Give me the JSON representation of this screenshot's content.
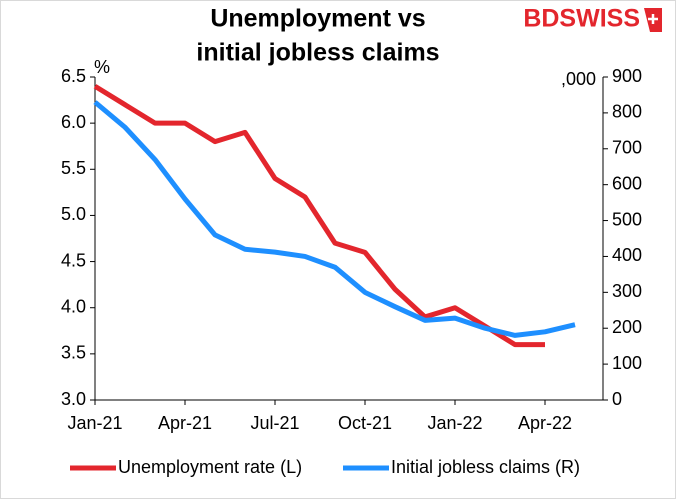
{
  "chart_data": {
    "type": "line",
    "title": [
      "Unemployment vs",
      "initial jobless claims"
    ],
    "logo": "BDSWISS",
    "y_unit_label": "%",
    "y2_unit_label": ",000",
    "categories": [
      "Jan-21",
      null,
      null,
      "Apr-21",
      null,
      null,
      "Jul-21",
      null,
      null,
      "Oct-21",
      null,
      null,
      "Jan-22",
      null,
      null,
      "Apr-22",
      null
    ],
    "ylim": [
      3.0,
      6.5
    ],
    "yticks": [
      {
        "value": 3.0,
        "label": "3.0"
      },
      3.5,
      {
        "value": 4.0,
        "label": "4.0"
      },
      4.5,
      {
        "value": 5.0,
        "label": "5.0"
      },
      5.5,
      {
        "value": 6.0,
        "label": "6.0"
      },
      6.5
    ],
    "y2lim": [
      0,
      900
    ],
    "y2ticks": [
      0,
      100,
      200,
      300,
      400,
      500,
      600,
      700,
      800,
      900
    ],
    "series": [
      {
        "name": "Unemployment rate (L)",
        "color": "#e3262d",
        "axis": "y",
        "values": [
          6.4,
          6.2,
          6.0,
          6.0,
          5.8,
          5.9,
          5.4,
          5.2,
          4.7,
          4.6,
          4.2,
          3.9,
          4.0,
          3.8,
          3.6,
          3.6,
          null
        ]
      },
      {
        "name": "Initial jobless claims (R)",
        "color": "#1e8fff",
        "axis": "y2",
        "values": [
          830,
          760,
          670,
          560,
          460,
          420,
          412,
          400,
          370,
          300,
          260,
          222,
          228,
          200,
          180,
          190,
          210
        ]
      }
    ]
  }
}
